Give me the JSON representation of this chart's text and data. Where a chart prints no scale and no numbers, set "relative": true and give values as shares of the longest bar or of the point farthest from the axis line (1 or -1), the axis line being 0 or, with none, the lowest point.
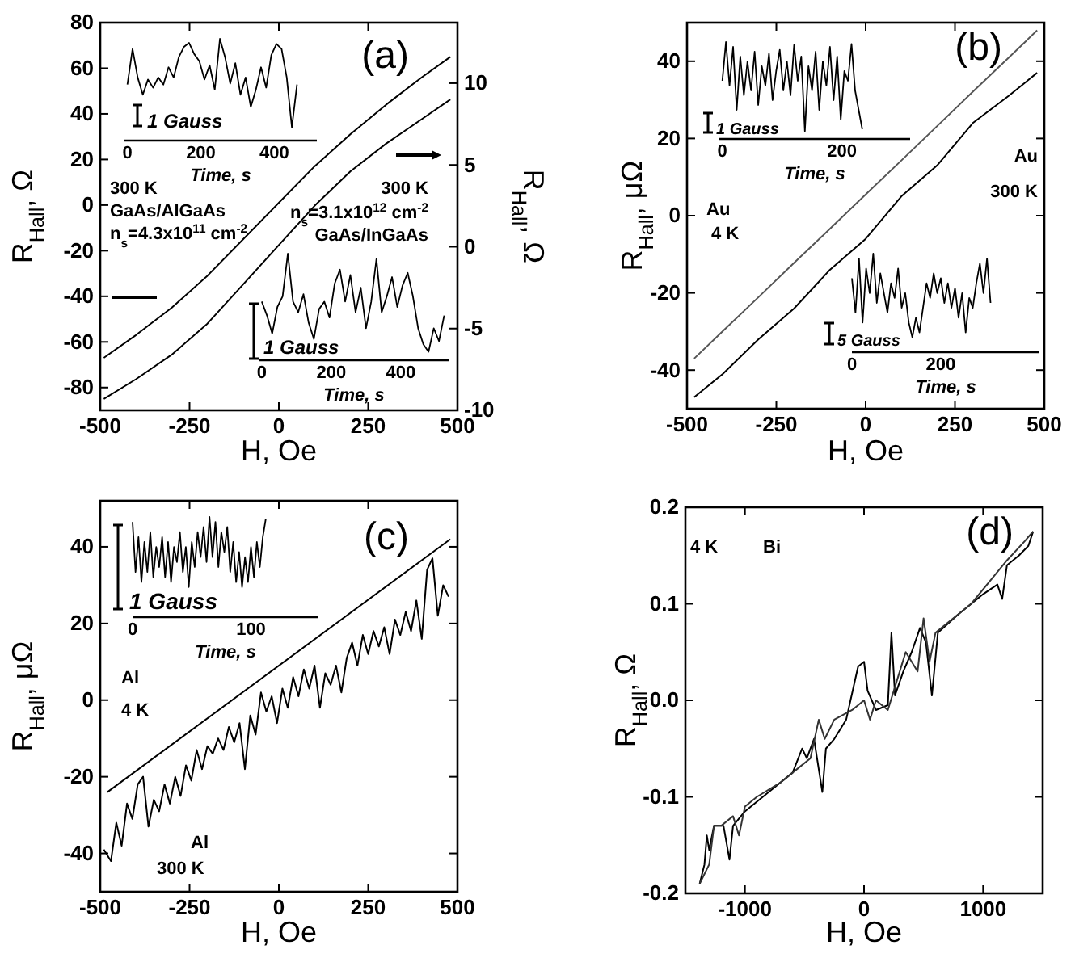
{
  "chart_data": [
    {
      "type": "line",
      "xlabel": "H, Oe",
      "ylabel": "R$_{Hall}$, Ω",
      "y2label": "R$_{Hall}$, Ω",
      "xlim": [
        -500,
        500
      ],
      "xticks": [
        -500,
        -250,
        0,
        250,
        500
      ],
      "ylim": [
        -90,
        80
      ],
      "yticks": [
        -80,
        -60,
        -40,
        -20,
        0,
        20,
        40,
        60,
        80
      ],
      "y2lim": [
        -10,
        13.7
      ],
      "y2ticks": [
        -10,
        -5,
        0,
        5,
        10
      ],
      "x": [
        -490,
        -400,
        -300,
        -200,
        -100,
        0,
        100,
        200,
        300,
        400,
        480
      ],
      "series": [
        {
          "color": "#000000",
          "values": [
            -67,
            -57,
            -45,
            -31,
            -15,
            1,
            17,
            31,
            44,
            56,
            65
          ]
        },
        {
          "color": "#000000",
          "axis": "y2",
          "values": [
            -9.3,
            -8.1,
            -6.6,
            -4.7,
            -2.3,
            0.1,
            2.5,
            4.6,
            6.3,
            7.8,
            9.0
          ]
        }
      ],
      "annotations": [
        "(a)",
        "300 K",
        "GaAs/AlGaAs",
        "n$_{s}$=4.3x10$^{11}$ cm$^{-2}$",
        "300 K",
        "n$_{s}$=3.1x10$^{12}$ cm$^{-2}$",
        "GaAs/InGaAs"
      ]
    },
    {
      "type": "line",
      "relative": true,
      "xlabel": "Time, s",
      "xlim": [
        -8,
        516
      ],
      "xticks": [
        0,
        200,
        400
      ],
      "x": [
        0,
        14,
        28,
        42,
        56,
        70,
        84,
        98,
        112,
        126,
        140,
        154,
        168,
        182,
        196,
        210,
        224,
        238,
        252,
        266,
        280,
        294,
        308,
        322,
        336,
        350,
        364,
        378,
        392,
        406,
        420,
        434,
        448,
        462
      ],
      "series": [
        {
          "color": "#000000",
          "values": [
            0.55,
            0.9,
            0.62,
            0.45,
            0.6,
            0.52,
            0.62,
            0.55,
            0.72,
            0.62,
            0.82,
            0.92,
            0.96,
            0.85,
            0.78,
            0.6,
            0.74,
            0.5,
            1,
            0.82,
            0.56,
            0.76,
            0.45,
            0.62,
            0.33,
            0.5,
            0.72,
            0.52,
            0.84,
            0.95,
            0.9,
            0.62,
            0.13,
            0.55
          ]
        }
      ],
      "annotations": [
        "1 Gauss"
      ]
    },
    {
      "type": "line",
      "relative": true,
      "xlabel": "Time, s",
      "xlim": [
        -9,
        540
      ],
      "xticks": [
        0,
        200,
        400
      ],
      "x": [
        0,
        15,
        30,
        45,
        60,
        75,
        90,
        105,
        120,
        135,
        150,
        165,
        180,
        195,
        210,
        225,
        240,
        255,
        270,
        285,
        300,
        315,
        330,
        345,
        360,
        375,
        390,
        405,
        420,
        435,
        450,
        465,
        480,
        495,
        510,
        525
      ],
      "series": [
        {
          "color": "#000000",
          "values": [
            0.55,
            0.42,
            0.25,
            0.5,
            0.6,
            1,
            0.55,
            0.45,
            0.62,
            0.35,
            0.2,
            0.48,
            0.55,
            0.4,
            0.72,
            0.85,
            0.55,
            0.8,
            0.45,
            0.68,
            0.3,
            0.55,
            0.95,
            0.45,
            0.6,
            0.78,
            0.5,
            0.7,
            0.82,
            0.6,
            0.3,
            0.15,
            0.08,
            0.3,
            0.18,
            0.42
          ]
        }
      ],
      "annotations": [
        "1 Gauss"
      ]
    },
    {
      "type": "line",
      "xlabel": "H, Oe",
      "ylabel": "R$_{Hall}$, μΩ",
      "xlim": [
        -500,
        500
      ],
      "xticks": [
        -500,
        -250,
        0,
        250,
        500
      ],
      "ylim": [
        -50,
        50
      ],
      "yticks": [
        -40,
        -20,
        0,
        20,
        40
      ],
      "x": [
        -480,
        -400,
        -300,
        -200,
        -100,
        0,
        100,
        200,
        300,
        400,
        480
      ],
      "series": [
        {
          "color": "#555555",
          "values": [
            -37,
            -29.9,
            -21.1,
            -12.2,
            -3.4,
            5.5,
            14.3,
            23.2,
            32.1,
            40.9,
            48
          ]
        },
        {
          "color": "#000000",
          "values": [
            -47,
            -41,
            -32,
            -24,
            -14,
            -6,
            5,
            13,
            24,
            31,
            37
          ]
        }
      ],
      "annotations": [
        "(b)",
        "Au",
        "4 K",
        "Au",
        "300 K"
      ]
    },
    {
      "type": "line",
      "relative": true,
      "xlabel": "Time, s",
      "xlim": [
        -5,
        314
      ],
      "xticks": [
        0,
        200
      ],
      "x": [
        0,
        6,
        12,
        18,
        24,
        30,
        36,
        42,
        48,
        54,
        60,
        66,
        72,
        78,
        84,
        90,
        96,
        102,
        108,
        114,
        120,
        126,
        132,
        138,
        144,
        150,
        156,
        162,
        168,
        174,
        180,
        186,
        192,
        198,
        204,
        210,
        216,
        222,
        228,
        234
      ],
      "series": [
        {
          "color": "#000000",
          "values": [
            0.6,
            1,
            0.55,
            0.95,
            0.3,
            0.85,
            0.45,
            0.8,
            0.5,
            0.9,
            0.35,
            0.75,
            0.55,
            0.88,
            0.4,
            0.7,
            0.92,
            0.5,
            0.8,
            0.45,
            0.97,
            0.6,
            0.85,
            0.08,
            0.75,
            0.5,
            0.9,
            0.3,
            0.8,
            0.55,
            0.95,
            0.4,
            0.85,
            0.2,
            0.7,
            0.6,
            0.98,
            0.5,
            0.3,
            0.1
          ]
        }
      ],
      "annotations": [
        "1 Gauss"
      ]
    },
    {
      "type": "line",
      "relative": true,
      "xlabel": "Time, s",
      "xlim": [
        0,
        422
      ],
      "xticks": [
        0,
        200
      ],
      "x": [
        0,
        8,
        16,
        24,
        32,
        40,
        48,
        56,
        64,
        72,
        80,
        88,
        96,
        104,
        112,
        120,
        128,
        136,
        144,
        152,
        160,
        168,
        176,
        184,
        192,
        200,
        208,
        216,
        224,
        232,
        240,
        248,
        256,
        264,
        272,
        280,
        288,
        296,
        304,
        312
      ],
      "series": [
        {
          "color": "#000000",
          "values": [
            0.75,
            0.4,
            0.95,
            0.3,
            0.85,
            0.6,
            1,
            0.5,
            0.8,
            0.6,
            0.4,
            0.7,
            0.55,
            0.85,
            0.45,
            0.6,
            0.3,
            0.15,
            0.35,
            0.2,
            0.45,
            0.7,
            0.55,
            0.8,
            0.6,
            0.75,
            0.5,
            0.7,
            0.45,
            0.65,
            0.35,
            0.6,
            0.2,
            0.55,
            0.45,
            0.7,
            0.9,
            0.6,
            0.95,
            0.5
          ]
        }
      ],
      "annotations": [
        "5 Gauss"
      ]
    },
    {
      "type": "line",
      "xlabel": "H, Oe",
      "ylabel": "R$_{Hall}$, μΩ",
      "xlim": [
        -500,
        500
      ],
      "xticks": [
        -500,
        -250,
        0,
        250,
        500
      ],
      "ylim": [
        -50,
        52
      ],
      "yticks": [
        -40,
        -20,
        0,
        20,
        40
      ],
      "series": [
        {
          "color": "#000000",
          "x": [
            -480,
            480
          ],
          "values": [
            -24,
            42
          ]
        },
        {
          "color": "#000000",
          "x": [
            -490,
            -470,
            -455,
            -440,
            -425,
            -410,
            -395,
            -380,
            -365,
            -350,
            -335,
            -320,
            -305,
            -290,
            -275,
            -260,
            -245,
            -230,
            -215,
            -200,
            -185,
            -170,
            -155,
            -140,
            -125,
            -110,
            -95,
            -80,
            -65,
            -50,
            -35,
            -20,
            -5,
            10,
            25,
            40,
            55,
            70,
            85,
            100,
            115,
            130,
            145,
            160,
            175,
            190,
            205,
            220,
            235,
            250,
            265,
            280,
            295,
            310,
            325,
            340,
            355,
            370,
            385,
            400,
            415,
            430,
            445,
            460,
            475
          ],
          "values": [
            -39,
            -42,
            -32,
            -38,
            -27,
            -31,
            -22,
            -20,
            -33,
            -26,
            -29,
            -22,
            -27,
            -20,
            -25,
            -17,
            -21,
            -13,
            -18,
            -12,
            -14,
            -10,
            -13,
            -7,
            -11,
            -6,
            -18,
            -4,
            -9,
            2,
            -3,
            1,
            -6,
            3,
            -2,
            6,
            1,
            8,
            3,
            9,
            -2,
            7,
            4,
            9,
            2,
            11,
            15,
            9,
            17,
            12,
            18,
            14,
            19,
            12,
            21,
            17,
            23,
            18,
            26,
            16,
            34,
            37,
            22,
            30,
            27
          ]
        }
      ],
      "annotations": [
        "(c)",
        "Al",
        "4 K",
        "Al",
        "300 K"
      ]
    },
    {
      "type": "line",
      "relative": true,
      "xlabel": "Time, s",
      "xlim": [
        0,
        157
      ],
      "xticks": [
        0,
        100
      ],
      "x": [
        0,
        2.5,
        5,
        7.5,
        10,
        12.5,
        15,
        17.5,
        20,
        22.5,
        25,
        27.5,
        30,
        32.5,
        35,
        37.5,
        40,
        42.5,
        45,
        47.5,
        50,
        52.5,
        55,
        57.5,
        60,
        62.5,
        65,
        67.5,
        70,
        72.5,
        75,
        77.5,
        80,
        82.5,
        85,
        87.5,
        90,
        92.5,
        95,
        97.5,
        100,
        102.5,
        105,
        107.5,
        110,
        112.5
      ],
      "series": [
        {
          "color": "#000000",
          "values": [
            0.95,
            0.45,
            0.8,
            0.35,
            0.75,
            0.45,
            0.85,
            0.4,
            0.7,
            0.5,
            0.8,
            0.4,
            0.75,
            0.35,
            0.7,
            0.55,
            0.85,
            0.45,
            0.7,
            0.3,
            0.75,
            0.5,
            0.85,
            0.6,
            0.9,
            0.55,
            1,
            0.6,
            0.95,
            0.5,
            0.85,
            0.65,
            0.9,
            0.45,
            0.75,
            0.35,
            0.65,
            0.3,
            0.6,
            0.35,
            0.7,
            0.4,
            0.75,
            0.5,
            0.8,
            0.98
          ]
        }
      ],
      "annotations": [
        "1 Gauss"
      ]
    },
    {
      "type": "line",
      "xlabel": "H, Oe",
      "ylabel": "R$_{Hall}$, Ω",
      "xlim": [
        -1500,
        1500
      ],
      "xticks": [
        -1000,
        0,
        1000
      ],
      "ylim": [
        -0.2,
        0.2
      ],
      "yticks": [
        -0.2,
        -0.1,
        {
          "value": 0,
          "label": "0.0"
        },
        0.1,
        0.2
      ],
      "series": [
        {
          "color": "#000000",
          "x": [
            -1380,
            -1340,
            -1320,
            -1300,
            -1260,
            -1180,
            -1130,
            -1100,
            -1000,
            -800,
            -600,
            -520,
            -480,
            -420,
            -350,
            -320,
            -250,
            -150,
            -50,
            0,
            30,
            100,
            200,
            230,
            260,
            330,
            400,
            470,
            520,
            570,
            620,
            800,
            1000,
            1120,
            1160,
            1200,
            1300,
            1380,
            1420
          ],
          "values": [
            -0.19,
            -0.17,
            -0.14,
            -0.155,
            -0.13,
            -0.13,
            -0.165,
            -0.13,
            -0.115,
            -0.095,
            -0.075,
            -0.05,
            -0.06,
            -0.04,
            -0.095,
            -0.05,
            -0.04,
            -0.02,
            0.035,
            0.04,
            0.01,
            -0.01,
            -0.005,
            0.07,
            0.005,
            0.03,
            0.05,
            0.075,
            0.06,
            0.005,
            0.07,
            0.09,
            0.11,
            0.12,
            0.105,
            0.14,
            0.15,
            0.16,
            0.175
          ]
        },
        {
          "color": "#333333",
          "x": [
            1420,
            1350,
            1200,
            1100,
            900,
            700,
            600,
            550,
            500,
            450,
            350,
            300,
            200,
            100,
            50,
            0,
            -100,
            -250,
            -330,
            -380,
            -450,
            -550,
            -700,
            -900,
            -1000,
            -1050,
            -1100,
            -1200,
            -1260,
            -1300,
            -1380
          ],
          "values": [
            0.175,
            0.165,
            0.145,
            0.13,
            0.1,
            0.08,
            0.07,
            0.04,
            0.085,
            0.03,
            0.05,
            0.03,
            -0.01,
            0,
            -0.02,
            0,
            -0.01,
            -0.02,
            -0.04,
            -0.02,
            -0.06,
            -0.07,
            -0.085,
            -0.1,
            -0.11,
            -0.14,
            -0.12,
            -0.13,
            -0.13,
            -0.17,
            -0.19
          ]
        }
      ],
      "annotations": [
        "(d)",
        "4 K",
        "Bi"
      ]
    }
  ]
}
